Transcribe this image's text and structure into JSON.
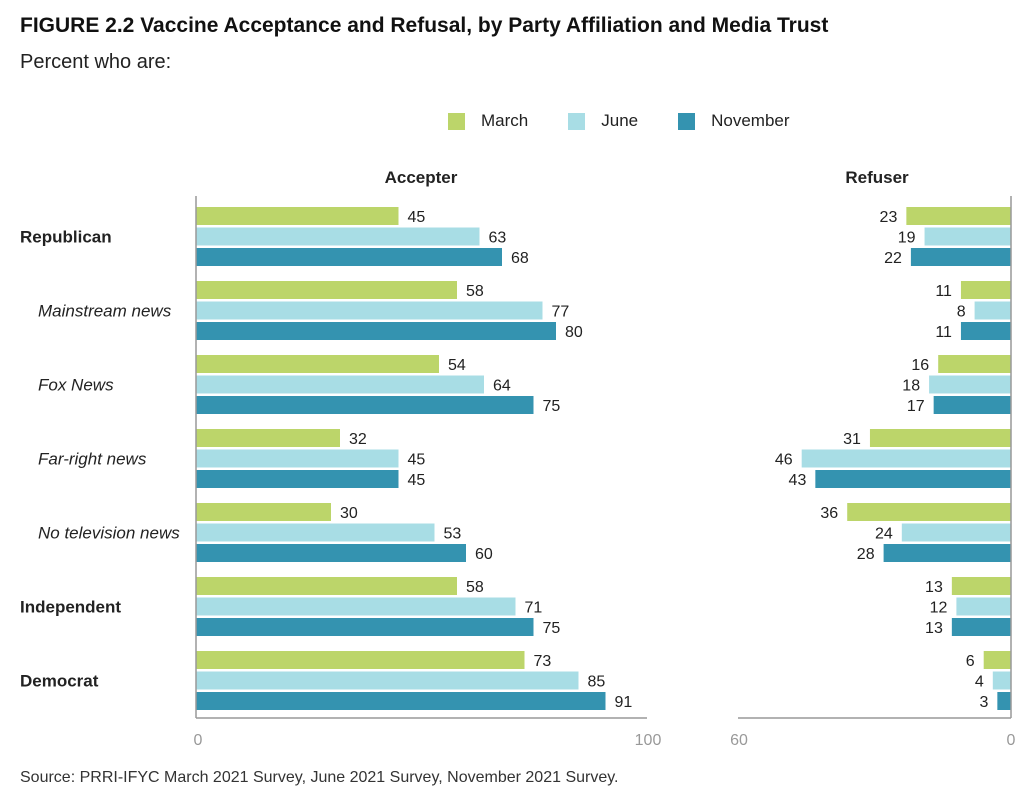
{
  "figure": {
    "title": "FIGURE 2.2  Vaccine Acceptance and Refusal, by Party Affiliation and Media Trust",
    "subtitle": "Percent who are:",
    "source": "Source: PRRI-IFYC March 2021 Survey, June 2021 Survey, November 2021 Survey."
  },
  "legend": [
    {
      "label": "March",
      "color": "#bcd56a"
    },
    {
      "label": "June",
      "color": "#a8dde5"
    },
    {
      "label": "November",
      "color": "#3493b0"
    }
  ],
  "chart_data": [
    {
      "type": "bar",
      "orientation": "horizontal",
      "title": "Accepter",
      "categories": [
        "Republican",
        "Mainstream news",
        "Fox News",
        "Far-right news",
        "No television news",
        "Independent",
        "Democrat"
      ],
      "category_italic": [
        false,
        true,
        true,
        true,
        true,
        false,
        false
      ],
      "series": [
        {
          "name": "March",
          "values": [
            45,
            58,
            54,
            32,
            30,
            58,
            73
          ]
        },
        {
          "name": "June",
          "values": [
            63,
            77,
            64,
            45,
            53,
            71,
            85
          ]
        },
        {
          "name": "November",
          "values": [
            68,
            80,
            75,
            45,
            60,
            75,
            91
          ]
        }
      ],
      "xlim": [
        0,
        100
      ],
      "axis_labels": [
        "0",
        "100"
      ],
      "grid": false
    },
    {
      "type": "bar",
      "orientation": "horizontal",
      "direction": "right-to-left",
      "title": "Refuser",
      "categories": [
        "Republican",
        "Mainstream news",
        "Fox News",
        "Far-right news",
        "No television news",
        "Independent",
        "Democrat"
      ],
      "series": [
        {
          "name": "March",
          "values": [
            23,
            11,
            16,
            31,
            36,
            13,
            6
          ]
        },
        {
          "name": "June",
          "values": [
            19,
            8,
            18,
            46,
            24,
            12,
            4
          ]
        },
        {
          "name": "November",
          "values": [
            22,
            11,
            17,
            43,
            28,
            13,
            3
          ]
        }
      ],
      "xlim": [
        0,
        60
      ],
      "axis_labels": [
        "60",
        "0"
      ],
      "grid": false
    }
  ]
}
